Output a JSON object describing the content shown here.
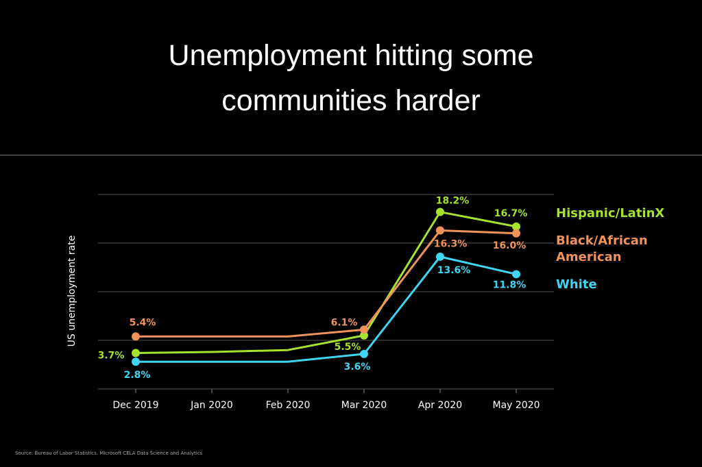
{
  "chart_data": {
    "type": "line",
    "title": "Unemployment hitting some communities harder",
    "y_label": "US unemployment rate",
    "source": "Source: Bureau of Labor Statistics. Microsoft CELA Data Science and Analytics",
    "categories": [
      "Dec 2019",
      "Jan 2020",
      "Feb 2020",
      "Mar 2020",
      "Apr 2020",
      "May 2020"
    ],
    "ylim": [
      0,
      20
    ],
    "yticks": [
      0,
      5,
      10,
      15,
      20
    ],
    "grid": true,
    "series": [
      {
        "name": "Hispanic/LatinX",
        "color": "#a6e22e",
        "values": [
          3.7,
          3.8,
          4.0,
          5.5,
          18.2,
          16.7
        ],
        "value_labels": [
          "3.7%",
          null,
          null,
          "5.5%",
          "18.2%",
          "16.7%"
        ]
      },
      {
        "name": "Black/African American",
        "color": "#f0935a",
        "values": [
          5.4,
          5.4,
          5.4,
          6.1,
          16.3,
          16.0
        ],
        "value_labels": [
          "5.4%",
          null,
          null,
          "6.1%",
          "16.3%",
          "16.0%"
        ]
      },
      {
        "name": "White",
        "color": "#3fd5f3",
        "values": [
          2.8,
          2.8,
          2.8,
          3.6,
          13.6,
          11.8
        ],
        "value_labels": [
          "2.8%",
          null,
          null,
          "3.6%",
          "13.6%",
          "11.8%"
        ]
      }
    ]
  }
}
